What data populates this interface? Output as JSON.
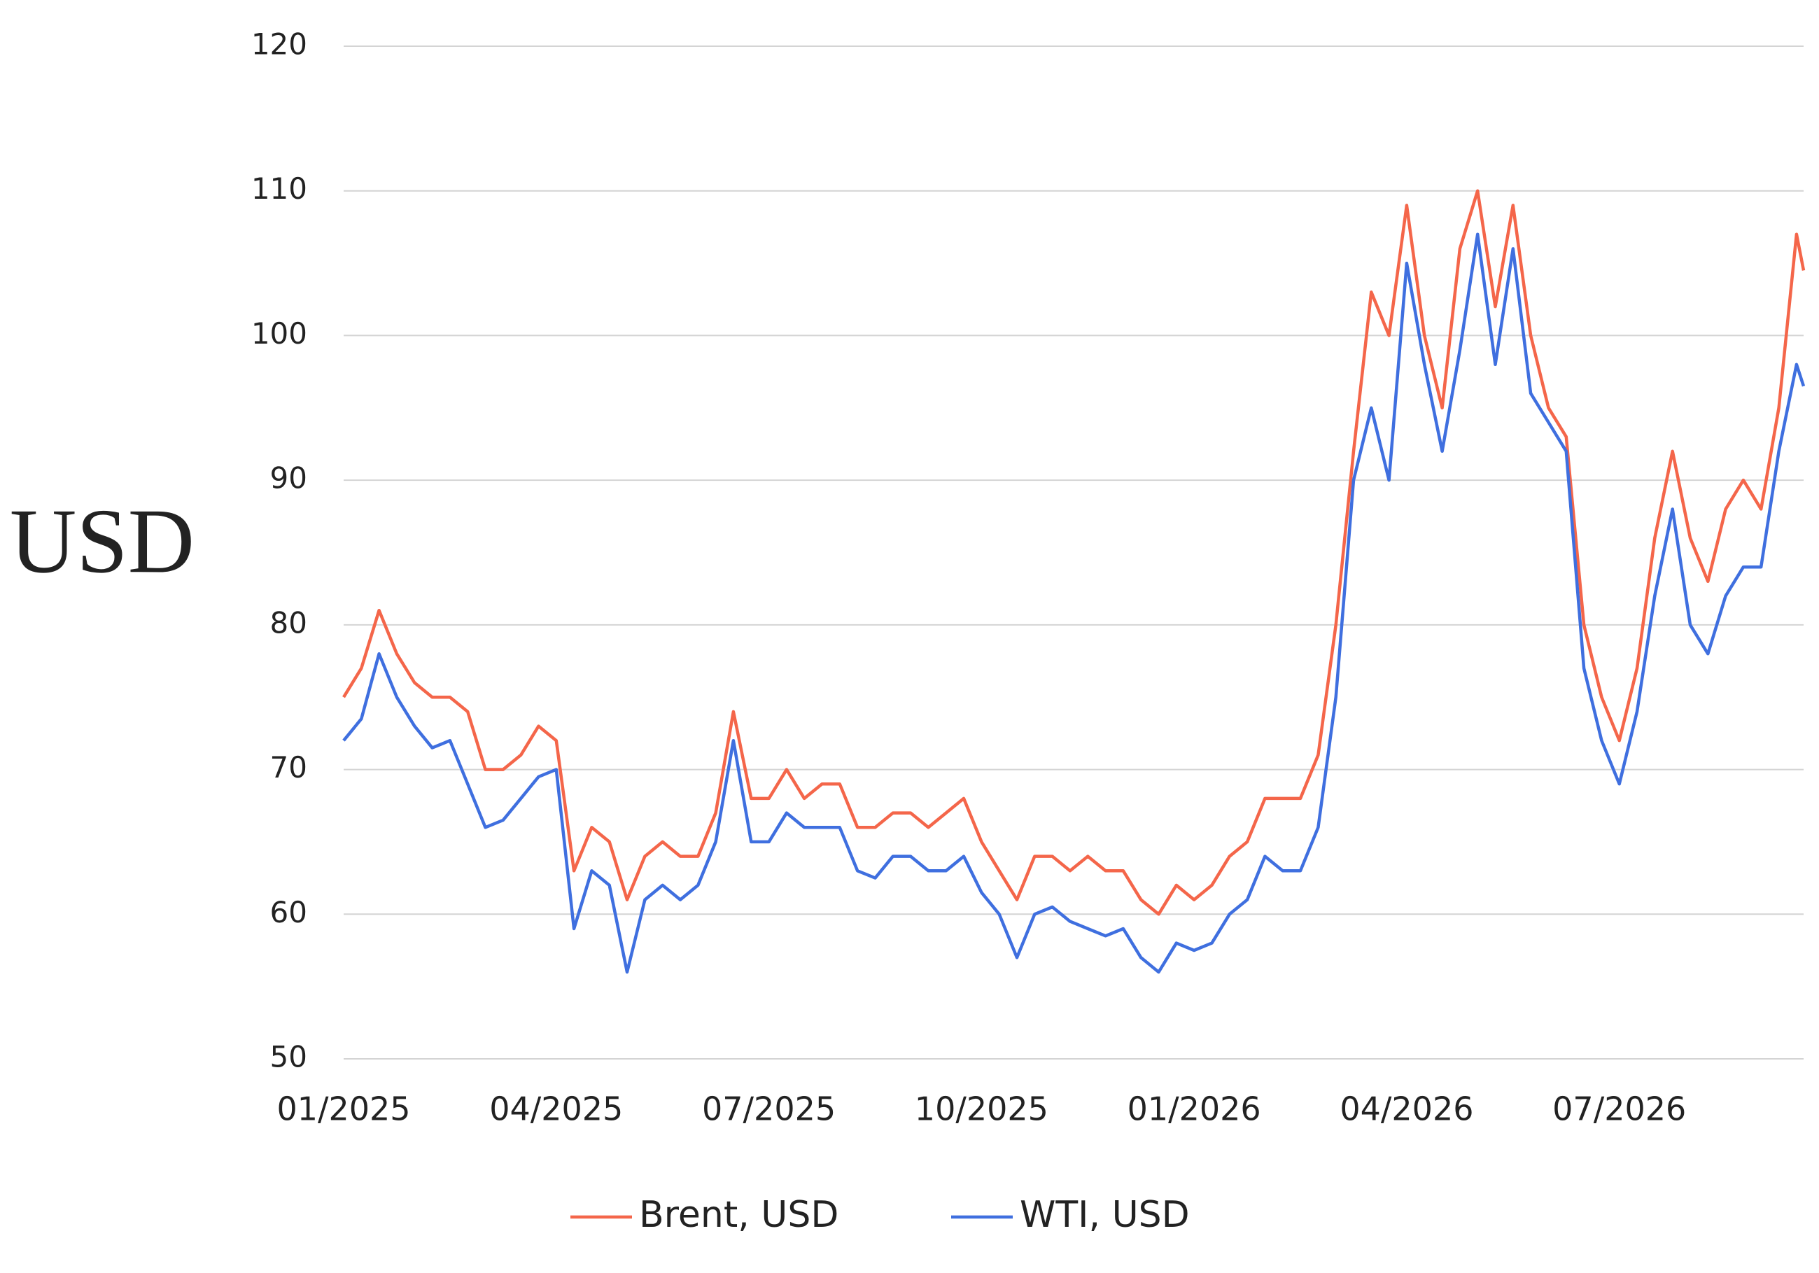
{
  "chart_data": {
    "type": "line",
    "y_label": "USD",
    "x": [
      0,
      0.25,
      0.5,
      0.75,
      1,
      1.25,
      1.5,
      1.75,
      2,
      2.25,
      2.5,
      2.75,
      3,
      3.25,
      3.5,
      3.75,
      4,
      4.25,
      4.5,
      4.75,
      5,
      5.25,
      5.5,
      5.75,
      6,
      6.25,
      6.5,
      6.75,
      7,
      7.25,
      7.5,
      7.75,
      8,
      8.25,
      8.5,
      8.75,
      9,
      9.25,
      9.5,
      9.75,
      10,
      10.25,
      10.5,
      10.75,
      11,
      11.25,
      11.5,
      11.75,
      12,
      12.25,
      12.5,
      12.75,
      13,
      13.25,
      13.5,
      13.75,
      14,
      14.25,
      14.5,
      14.75,
      15,
      15.25,
      15.5,
      15.75,
      16,
      16.25,
      16.5,
      16.75,
      17,
      17.25,
      17.5,
      17.75,
      18,
      18.25,
      18.5,
      18.75,
      19,
      19.25,
      19.5,
      19.75,
      20,
      20.25,
      20.5,
      20.6
    ],
    "series": [
      {
        "name": "Brent, USD",
        "color": "#f4664a",
        "values": [
          75,
          77,
          81,
          78,
          76,
          75,
          75,
          74,
          70,
          70,
          71,
          73,
          72,
          63,
          66,
          65,
          61,
          64,
          65,
          64,
          64,
          67,
          74,
          68,
          68,
          70,
          68,
          69,
          69,
          66,
          66,
          67,
          67,
          66,
          67,
          68,
          65,
          63,
          61,
          64,
          64,
          63,
          64,
          63,
          63,
          61,
          60,
          62,
          61,
          62,
          64,
          65,
          68,
          68,
          68,
          71,
          80,
          92,
          103,
          100,
          109,
          100,
          95,
          106,
          110,
          102,
          109,
          100,
          95,
          93,
          80,
          75,
          72,
          77,
          86,
          92,
          86,
          83,
          88,
          90,
          88,
          95,
          107,
          104.5
        ]
      },
      {
        "name": "WTI, USD",
        "color": "#3f6fdf",
        "values": [
          72,
          73.5,
          78,
          75,
          73,
          71.5,
          72,
          69,
          66,
          66.5,
          68,
          69.5,
          70,
          59,
          63,
          62,
          56,
          61,
          62,
          61,
          62,
          65,
          72,
          65,
          65,
          67,
          66,
          66,
          66,
          63,
          62.5,
          64,
          64,
          63,
          63,
          64,
          61.5,
          60,
          57,
          60,
          60.5,
          59.5,
          59,
          58.5,
          59,
          57,
          56,
          58,
          57.5,
          58,
          60,
          61,
          64,
          63,
          63,
          66,
          75,
          90,
          95,
          90,
          105,
          98,
          92,
          99,
          107,
          98,
          106,
          96,
          94,
          92,
          77,
          72,
          69,
          74,
          82,
          88,
          80,
          78,
          82,
          84,
          84,
          92,
          98,
          96.5
        ]
      }
    ],
    "xlim": [
      0,
      20.6
    ],
    "xticks": [
      {
        "value": 0,
        "label": "01/2025"
      },
      {
        "value": 3,
        "label": "04/2025"
      },
      {
        "value": 6,
        "label": "07/2025"
      },
      {
        "value": 9,
        "label": "10/2025"
      },
      {
        "value": 12,
        "label": "01/2026"
      },
      {
        "value": 15,
        "label": "04/2026"
      },
      {
        "value": 18,
        "label": "07/2026"
      }
    ],
    "ylim": [
      50,
      120
    ],
    "yticks": [
      50,
      60,
      70,
      80,
      90,
      100,
      110,
      120
    ],
    "grid": true,
    "legend": "bottom"
  }
}
